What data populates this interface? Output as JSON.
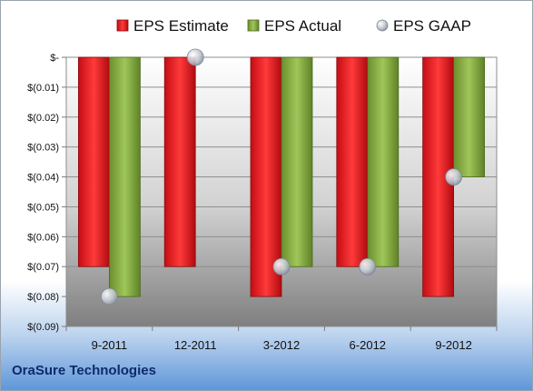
{
  "chart_data": {
    "type": "bar",
    "categories": [
      "9-2011",
      "12-2011",
      "3-2012",
      "6-2012",
      "9-2012"
    ],
    "series": [
      {
        "name": "EPS Estimate",
        "color": "#e0141c",
        "values": [
          -0.07,
          -0.07,
          -0.08,
          -0.07,
          -0.08
        ]
      },
      {
        "name": "EPS Actual",
        "color": "#7fa33c",
        "values": [
          -0.08,
          null,
          -0.07,
          -0.07,
          -0.04
        ]
      },
      {
        "name": "EPS GAAP",
        "color": "#b8c0cc",
        "marker": "sphere",
        "values": [
          -0.08,
          0.0,
          -0.07,
          -0.07,
          -0.04
        ]
      }
    ],
    "y_ticks": [
      "$-",
      "$(0.01)",
      "$(0.02)",
      "$(0.03)",
      "$(0.04)",
      "$(0.05)",
      "$(0.06)",
      "$(0.07)",
      "$(0.08)",
      "$(0.09)"
    ],
    "ylim": [
      -0.09,
      0
    ],
    "grid": true,
    "legend_position": "top",
    "company": "OraSure Technologies"
  }
}
